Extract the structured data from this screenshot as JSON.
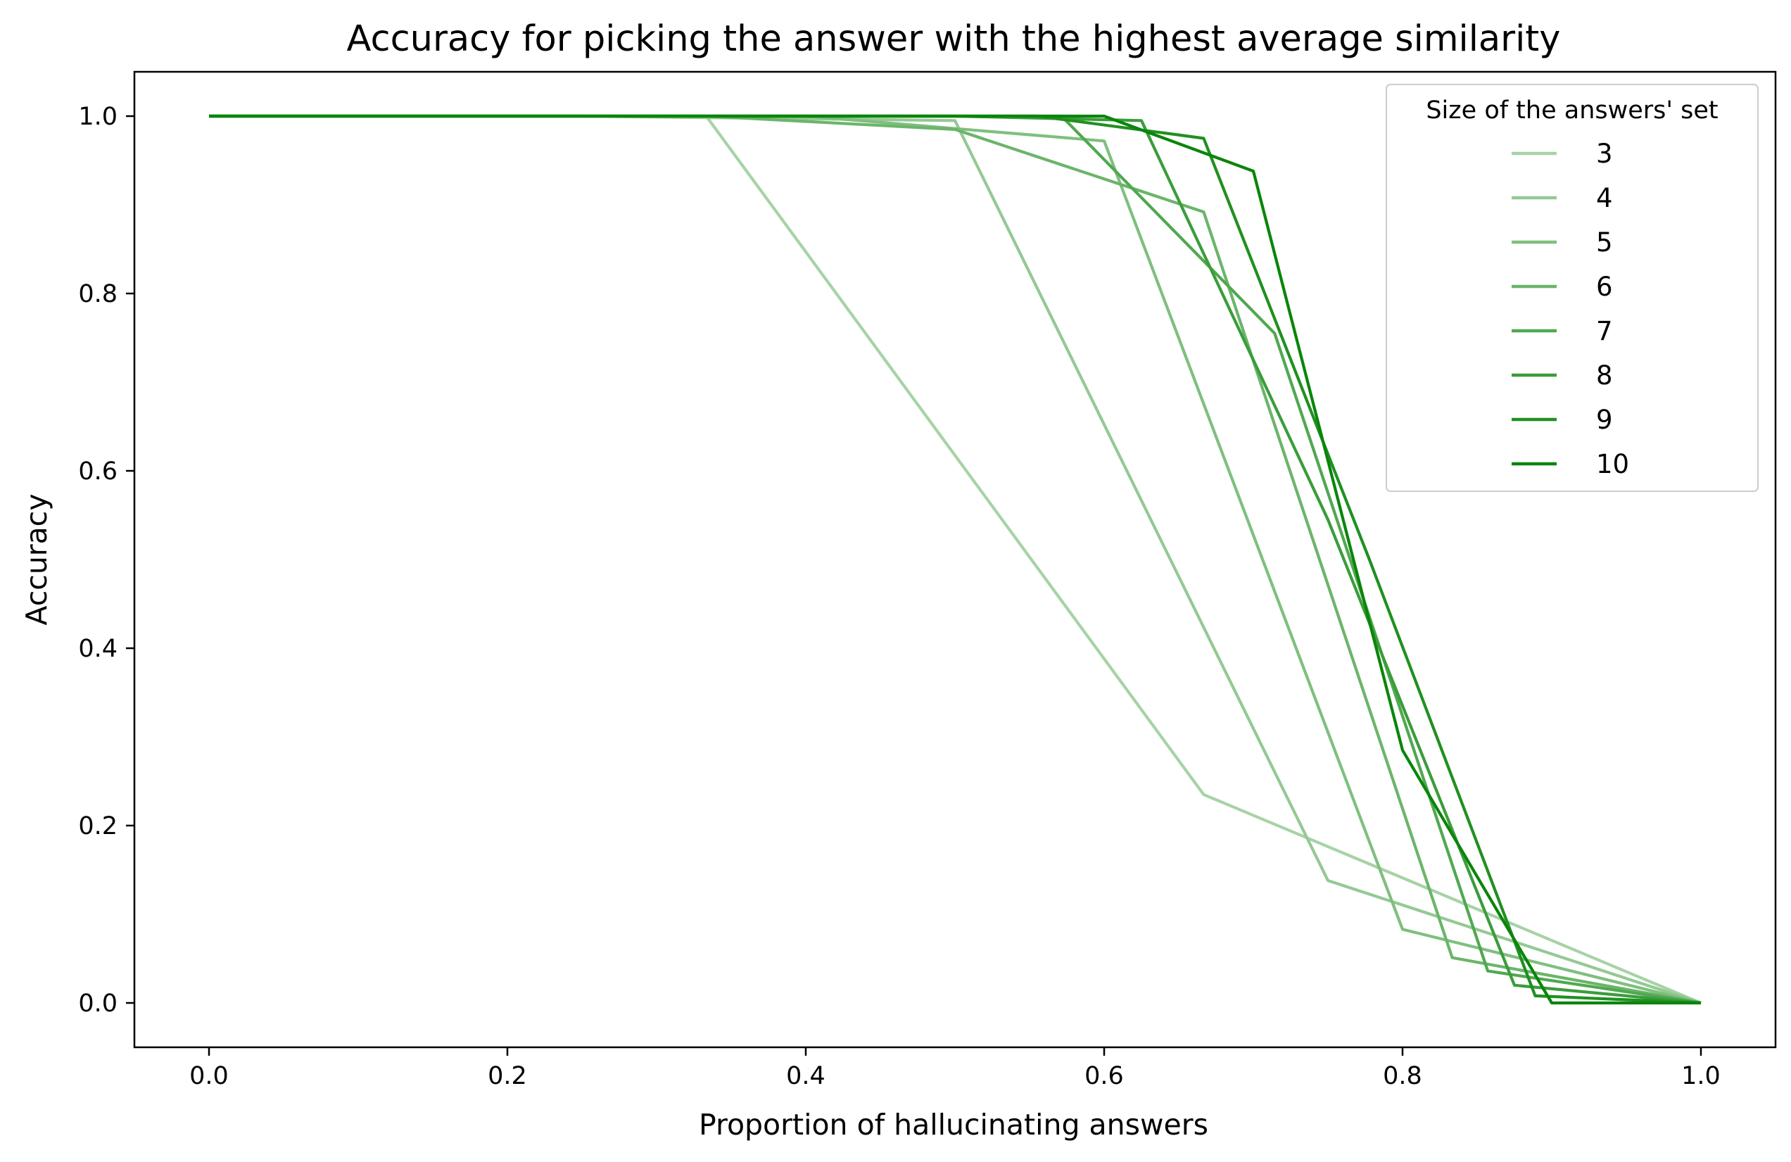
{
  "chart_data": {
    "type": "line",
    "title": "Accuracy for picking the answer with the highest average similarity",
    "xlabel": "Proportion of hallucinating answers",
    "ylabel": "Accuracy",
    "xlim": [
      -0.05,
      1.05
    ],
    "ylim": [
      -0.05,
      1.05
    ],
    "xticks": [
      0.0,
      0.2,
      0.4,
      0.6,
      0.8,
      1.0
    ],
    "yticks": [
      0.0,
      0.2,
      0.4,
      0.6,
      0.8,
      1.0
    ],
    "xtick_labels": [
      "0.0",
      "0.2",
      "0.4",
      "0.6",
      "0.8",
      "1.0"
    ],
    "ytick_labels": [
      "0.0",
      "0.2",
      "0.4",
      "0.6",
      "0.8",
      "1.0"
    ],
    "grid": false,
    "legend": {
      "title": "Size of the answers' set",
      "placement": "top-right"
    },
    "series": [
      {
        "name": "3",
        "color": "#a6d3a6",
        "x": [
          0,
          0.3333,
          0.6667,
          1.0
        ],
        "y": [
          1.0,
          1.0,
          0.235,
          0.0
        ]
      },
      {
        "name": "4",
        "color": "#94c994",
        "x": [
          0,
          0.25,
          0.5,
          0.75,
          1.0
        ],
        "y": [
          1.0,
          1.0,
          0.995,
          0.138,
          0.0
        ]
      },
      {
        "name": "5",
        "color": "#7fbf7f",
        "x": [
          0,
          0.2,
          0.4,
          0.6,
          0.8,
          1.0
        ],
        "y": [
          1.0,
          1.0,
          1.0,
          0.972,
          0.083,
          0.0
        ]
      },
      {
        "name": "6",
        "color": "#6ab56a",
        "x": [
          0,
          0.1667,
          0.3333,
          0.5,
          0.6667,
          0.8333,
          1.0
        ],
        "y": [
          1.0,
          1.0,
          1.0,
          0.985,
          0.892,
          0.051,
          0.0
        ]
      },
      {
        "name": "7",
        "color": "#50a850",
        "x": [
          0,
          0.1429,
          0.2857,
          0.4286,
          0.5714,
          0.7143,
          0.8571,
          1.0
        ],
        "y": [
          1.0,
          1.0,
          1.0,
          1.0,
          1.0,
          0.755,
          0.036,
          0.0
        ]
      },
      {
        "name": "8",
        "color": "#3a9d3a",
        "x": [
          0,
          0.125,
          0.25,
          0.375,
          0.5,
          0.625,
          0.75,
          0.875,
          1.0
        ],
        "y": [
          1.0,
          1.0,
          1.0,
          1.0,
          1.0,
          0.995,
          0.545,
          0.02,
          0.0
        ]
      },
      {
        "name": "9",
        "color": "#209020",
        "x": [
          0,
          0.1111,
          0.2222,
          0.3333,
          0.4444,
          0.5556,
          0.6667,
          0.7778,
          0.8889,
          1.0
        ],
        "y": [
          1.0,
          1.0,
          1.0,
          1.0,
          1.0,
          1.0,
          0.975,
          0.5,
          0.008,
          0.0
        ]
      },
      {
        "name": "10",
        "color": "#0a850a",
        "x": [
          0,
          0.1,
          0.2,
          0.3,
          0.4,
          0.5,
          0.6,
          0.7,
          0.8,
          0.9,
          1.0
        ],
        "y": [
          1.0,
          1.0,
          1.0,
          1.0,
          1.0,
          1.0,
          1.0,
          0.938,
          0.285,
          0.0,
          0.0
        ]
      }
    ]
  }
}
